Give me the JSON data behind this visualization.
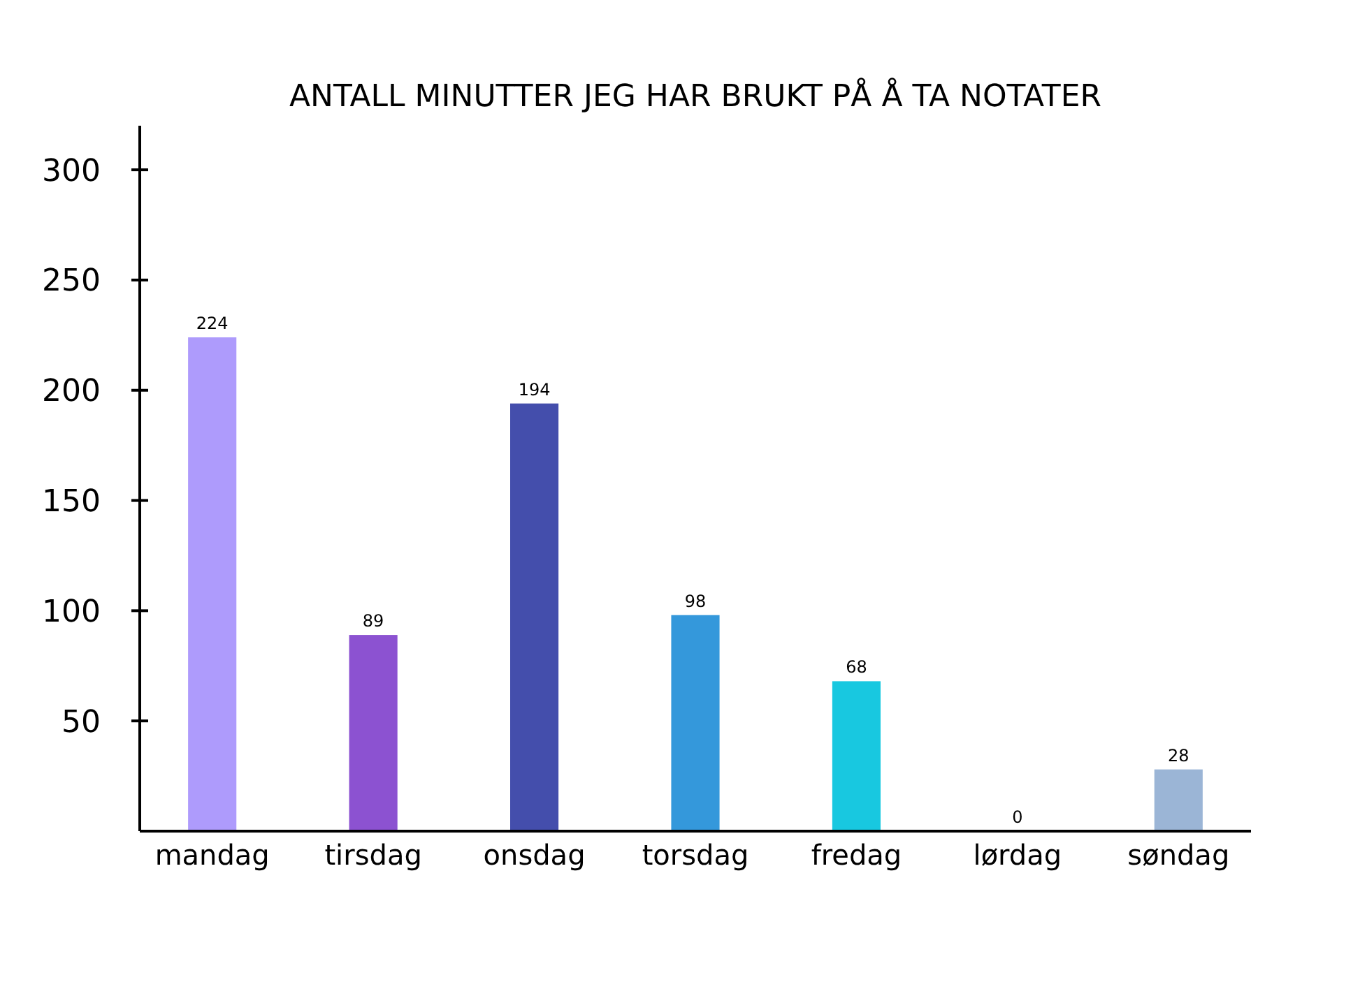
{
  "chart_data": {
    "type": "bar",
    "title": "ANTALL MINUTTER JEG HAR BRUKT PÅ Å TA NOTATER",
    "categories": [
      "mandag",
      "tirsdag",
      "onsdag",
      "torsdag",
      "fredag",
      "lørdag",
      "søndag"
    ],
    "values": [
      224,
      89,
      194,
      98,
      68,
      0,
      28
    ],
    "colors": [
      "#ae9bfc",
      "#8c52d1",
      "#444eac",
      "#3498db",
      "#18c8e0",
      "#cccccc",
      "#9bb5d6"
    ],
    "ylim": [
      0,
      320
    ],
    "yticks": [
      50,
      100,
      150,
      200,
      250,
      300
    ],
    "data_labels": true,
    "grid": false
  }
}
